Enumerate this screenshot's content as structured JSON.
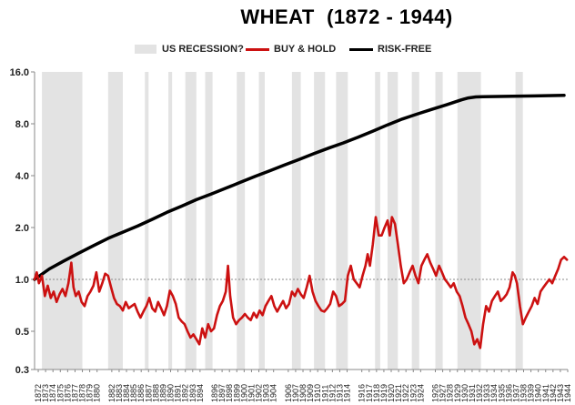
{
  "chart_data": {
    "type": "line",
    "title": "WHEAT  (1872 - 1944)",
    "scale": "log",
    "ylim": [
      0.3,
      16.0
    ],
    "xlim": [
      1872,
      1944.5
    ],
    "y_ticks": [
      "16.0",
      "8.0",
      "4.0",
      "2.0",
      "1.0",
      "0.5",
      "0.3"
    ],
    "y_tick_values": [
      16,
      8,
      4,
      2,
      1,
      0.5,
      0.3
    ],
    "x_ticks": [
      "1872",
      "1873",
      "1874",
      "1875",
      "1876",
      "1877",
      "1878",
      "1879",
      "1880",
      "1882",
      "1883",
      "1884",
      "1885",
      "1886",
      "1887",
      "1888",
      "1889",
      "1890",
      "1891",
      "1892",
      "1893",
      "1894",
      "1896",
      "1897",
      "1898",
      "1899",
      "1900",
      "1901",
      "1902",
      "1903",
      "1904",
      "1906",
      "1907",
      "1908",
      "1909",
      "1910",
      "1911",
      "1912",
      "1913",
      "1914",
      "1916",
      "1917",
      "1918",
      "1919",
      "1920",
      "1921",
      "1922",
      "1923",
      "1924",
      "1926",
      "1927",
      "1928",
      "1929",
      "1930",
      "1931",
      "1932",
      "1933",
      "1934",
      "1935",
      "1936",
      "1937",
      "1938",
      "1939",
      "1940",
      "1941",
      "1942",
      "1943",
      "1944"
    ],
    "grid": false,
    "reference_line": 1.0,
    "legend": {
      "placement": "top",
      "entries": [
        {
          "label": "US RECESSION?",
          "color": "#e3e3e3",
          "kind": "band"
        },
        {
          "label": "BUY & HOLD",
          "color": "#cc1111",
          "kind": "line"
        },
        {
          "label": "RISK-FREE",
          "color": "#000000",
          "kind": "line"
        }
      ]
    },
    "recessions": [
      [
        1873.0,
        1878.5
      ],
      [
        1882.0,
        1884.0
      ],
      [
        1887.0,
        1887.5
      ],
      [
        1890.2,
        1890.7
      ],
      [
        1892.5,
        1894.0
      ],
      [
        1895.2,
        1896.2
      ],
      [
        1899.5,
        1900.6
      ],
      [
        1902.5,
        1903.3
      ],
      [
        1907.0,
        1908.2
      ],
      [
        1910.0,
        1911.5
      ],
      [
        1913.0,
        1914.6
      ],
      [
        1918.3,
        1919.0
      ],
      [
        1920.0,
        1921.4
      ],
      [
        1923.3,
        1924.3
      ],
      [
        1926.5,
        1927.5
      ],
      [
        1929.5,
        1932.7
      ],
      [
        1937.4,
        1938.4
      ]
    ],
    "series": [
      {
        "name": "RISK-FREE",
        "color": "#000000",
        "x": [
          1872,
          1874,
          1876,
          1878,
          1880,
          1882,
          1884,
          1886,
          1888,
          1890,
          1892,
          1894,
          1896,
          1898,
          1900,
          1902,
          1904,
          1906,
          1908,
          1910,
          1912,
          1914,
          1916,
          1918,
          1920,
          1922,
          1924,
          1926,
          1928,
          1930,
          1931,
          1932,
          1933,
          1935,
          1937,
          1940,
          1944
        ],
        "values": [
          1.0,
          1.15,
          1.28,
          1.42,
          1.57,
          1.73,
          1.88,
          2.04,
          2.23,
          2.45,
          2.66,
          2.9,
          3.13,
          3.38,
          3.66,
          3.96,
          4.27,
          4.61,
          4.97,
          5.37,
          5.78,
          6.2,
          6.68,
          7.25,
          7.88,
          8.52,
          9.1,
          9.7,
          10.3,
          11.0,
          11.3,
          11.45,
          11.5,
          11.52,
          11.55,
          11.6,
          11.7
        ]
      },
      {
        "name": "BUY & HOLD",
        "color": "#cc1111",
        "x": [
          1872.0,
          1872.3,
          1872.6,
          1873.0,
          1873.4,
          1873.8,
          1874.2,
          1874.6,
          1875.0,
          1875.4,
          1875.8,
          1876.2,
          1876.6,
          1877.0,
          1877.3,
          1877.6,
          1878.0,
          1878.4,
          1878.8,
          1879.2,
          1879.6,
          1880.0,
          1880.4,
          1880.8,
          1881.2,
          1881.6,
          1882.0,
          1882.4,
          1882.8,
          1883.2,
          1883.6,
          1884.0,
          1884.4,
          1884.8,
          1885.2,
          1885.6,
          1886.0,
          1886.4,
          1886.8,
          1887.2,
          1887.6,
          1888.0,
          1888.4,
          1888.8,
          1889.2,
          1889.6,
          1890.0,
          1890.4,
          1890.8,
          1891.2,
          1891.6,
          1892.0,
          1892.4,
          1892.8,
          1893.2,
          1893.6,
          1894.0,
          1894.4,
          1894.8,
          1895.2,
          1895.6,
          1896.0,
          1896.4,
          1896.8,
          1897.2,
          1897.6,
          1898.0,
          1898.3,
          1898.6,
          1899.0,
          1899.4,
          1899.8,
          1900.2,
          1900.6,
          1901.0,
          1901.4,
          1901.8,
          1902.2,
          1902.6,
          1903.0,
          1903.4,
          1903.8,
          1904.2,
          1904.6,
          1905.0,
          1905.4,
          1905.8,
          1906.2,
          1906.6,
          1907.0,
          1907.4,
          1907.8,
          1908.2,
          1908.6,
          1909.0,
          1909.4,
          1909.8,
          1910.2,
          1910.6,
          1911.0,
          1911.4,
          1911.8,
          1912.2,
          1912.6,
          1913.0,
          1913.4,
          1913.8,
          1914.2,
          1914.6,
          1915.0,
          1915.4,
          1915.8,
          1916.2,
          1916.6,
          1917.0,
          1917.3,
          1917.6,
          1918.0,
          1918.4,
          1918.8,
          1919.2,
          1919.6,
          1920.0,
          1920.3,
          1920.6,
          1921.0,
          1921.4,
          1921.8,
          1922.2,
          1922.6,
          1923.0,
          1923.4,
          1923.8,
          1924.2,
          1924.6,
          1925.0,
          1925.4,
          1925.8,
          1926.2,
          1926.6,
          1927.0,
          1927.4,
          1927.8,
          1928.2,
          1928.6,
          1929.0,
          1929.4,
          1929.8,
          1930.2,
          1930.6,
          1931.0,
          1931.4,
          1931.8,
          1932.2,
          1932.6,
          1933.0,
          1933.4,
          1933.8,
          1934.2,
          1934.6,
          1935.0,
          1935.4,
          1935.8,
          1936.2,
          1936.6,
          1937.0,
          1937.3,
          1937.6,
          1938.0,
          1938.4,
          1938.8,
          1939.2,
          1939.6,
          1940.0,
          1940.4,
          1940.8,
          1941.2,
          1941.6,
          1942.0,
          1942.4,
          1942.8,
          1943.2,
          1943.6,
          1944.0,
          1944.4
        ],
        "values": [
          1.0,
          1.1,
          0.95,
          1.05,
          0.8,
          0.92,
          0.78,
          0.85,
          0.74,
          0.82,
          0.88,
          0.8,
          0.95,
          1.25,
          0.9,
          0.8,
          0.85,
          0.74,
          0.7,
          0.8,
          0.85,
          0.92,
          1.1,
          0.85,
          0.95,
          1.08,
          1.05,
          0.9,
          0.78,
          0.72,
          0.7,
          0.66,
          0.74,
          0.68,
          0.7,
          0.72,
          0.65,
          0.6,
          0.65,
          0.7,
          0.78,
          0.68,
          0.65,
          0.74,
          0.68,
          0.62,
          0.7,
          0.86,
          0.8,
          0.72,
          0.6,
          0.57,
          0.55,
          0.5,
          0.46,
          0.48,
          0.45,
          0.42,
          0.52,
          0.46,
          0.55,
          0.5,
          0.52,
          0.62,
          0.7,
          0.75,
          0.85,
          1.2,
          0.8,
          0.6,
          0.55,
          0.58,
          0.6,
          0.63,
          0.6,
          0.58,
          0.64,
          0.6,
          0.66,
          0.62,
          0.7,
          0.75,
          0.8,
          0.7,
          0.65,
          0.7,
          0.75,
          0.68,
          0.72,
          0.85,
          0.8,
          0.88,
          0.82,
          0.78,
          0.9,
          1.05,
          0.85,
          0.75,
          0.7,
          0.66,
          0.65,
          0.68,
          0.72,
          0.85,
          0.8,
          0.7,
          0.72,
          0.75,
          1.05,
          1.2,
          1.0,
          0.95,
          0.9,
          1.05,
          1.2,
          1.4,
          1.2,
          1.6,
          2.3,
          1.8,
          1.8,
          2.0,
          2.2,
          1.8,
          2.3,
          2.1,
          1.6,
          1.2,
          0.95,
          1.0,
          1.1,
          1.2,
          1.05,
          0.95,
          1.2,
          1.3,
          1.4,
          1.25,
          1.15,
          1.05,
          1.2,
          1.1,
          1.0,
          0.95,
          0.9,
          0.95,
          0.85,
          0.8,
          0.7,
          0.6,
          0.55,
          0.5,
          0.42,
          0.45,
          0.4,
          0.55,
          0.7,
          0.65,
          0.75,
          0.8,
          0.85,
          0.75,
          0.78,
          0.82,
          0.9,
          1.1,
          1.05,
          0.95,
          0.7,
          0.55,
          0.6,
          0.65,
          0.7,
          0.78,
          0.72,
          0.85,
          0.9,
          0.95,
          1.0,
          0.95,
          1.05,
          1.15,
          1.3,
          1.35,
          1.3
        ]
      }
    ]
  }
}
